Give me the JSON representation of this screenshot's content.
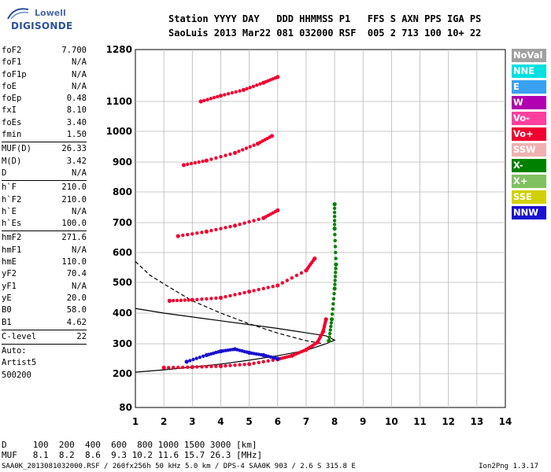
{
  "logo": {
    "line1": "Lowell",
    "line2": "DIGISONDE"
  },
  "header": {
    "line1": "Station YYYY DAY   DDD HHMMSS P1   FFS S AXN PPS IGA PS",
    "line2": "SaoLuis 2013 Mar22 081 032000 RSF  005 2 713 100 10+ 22"
  },
  "params": [
    {
      "k": "foF2",
      "v": "7.700"
    },
    {
      "k": "foF1",
      "v": "N/A"
    },
    {
      "k": "foF1p",
      "v": "N/A"
    },
    {
      "k": "foE",
      "v": "N/A"
    },
    {
      "k": "foEp",
      "v": "0.48"
    },
    {
      "k": "fxI",
      "v": "8.10"
    },
    {
      "k": "foEs",
      "v": "3.40"
    },
    {
      "k": "fmin",
      "v": "1.50"
    },
    {
      "sep": true
    },
    {
      "k": "MUF(D)",
      "v": "26.33"
    },
    {
      "k": "M(D)",
      "v": "3.42"
    },
    {
      "k": "D",
      "v": "N/A"
    },
    {
      "sep": true
    },
    {
      "k": "h`F",
      "v": "210.0"
    },
    {
      "k": "h`F2",
      "v": "210.0"
    },
    {
      "k": "h`E",
      "v": "N/A"
    },
    {
      "k": "h`Es",
      "v": "100.0"
    },
    {
      "sep": true
    },
    {
      "k": "hmF2",
      "v": "271.6"
    },
    {
      "k": "hmF1",
      "v": "N/A"
    },
    {
      "k": "hmE",
      "v": "110.0"
    },
    {
      "k": "yF2",
      "v": "70.4"
    },
    {
      "k": "yF1",
      "v": "N/A"
    },
    {
      "k": "yE",
      "v": "20.0"
    },
    {
      "k": "B0",
      "v": "58.0"
    },
    {
      "k": "B1",
      "v": "4.62"
    },
    {
      "sep": true
    },
    {
      "k": "C-level",
      "v": "22"
    },
    {
      "sep": true
    },
    {
      "plain": "Auto:"
    },
    {
      "plain": "Artist5"
    },
    {
      "plain": "500200"
    }
  ],
  "dmuf": {
    "d_line": "D     100  200  400  600  800 1000 1500 3000 [km]",
    "muf_line": "MUF   8.1  8.2  8.6  9.3 10.2 11.6 15.7 26.3 [MHz]"
  },
  "footer": "SAA0K_2013081032000.RSF / 260fx256h 50 kHz 5.0 km / DPS-4 SAA0K 903 / 2.6 S 315.8 E",
  "version": "Ion2Png 1.3.17",
  "legend": [
    {
      "label": "NoVal",
      "color": "#a0a0a0"
    },
    {
      "label": "NNE",
      "color": "#00e0e0"
    },
    {
      "label": "E",
      "color": "#3aa0f0"
    },
    {
      "label": "W",
      "color": "#b000b0"
    },
    {
      "label": "Vo-",
      "color": "#ff40a0"
    },
    {
      "label": "Vo+",
      "color": "#f00030"
    },
    {
      "label": "SSW",
      "color": "#f0b0b0"
    },
    {
      "label": "X-",
      "color": "#008000"
    },
    {
      "label": "X+",
      "color": "#80c060"
    },
    {
      "label": "SSE",
      "color": "#d0d000"
    },
    {
      "label": "NNW",
      "color": "#1a10d0"
    }
  ],
  "chart_data": {
    "type": "scatter",
    "xlim": [
      1,
      14
    ],
    "ylim": [
      80,
      1280
    ],
    "x_unit": "MHz",
    "y_unit": "km",
    "x_ticks": [
      1,
      2,
      3,
      4,
      5,
      6,
      7,
      8,
      9,
      10,
      11,
      12,
      13,
      14
    ],
    "y_ticks": [
      80,
      200,
      300,
      400,
      500,
      600,
      700,
      800,
      900,
      1000,
      1100,
      1280
    ],
    "y_scale": "virtual height (nonlinear)",
    "grid": true,
    "traces": [
      {
        "name": "Vo+",
        "color": "#f00030",
        "points": [
          [
            2,
            220
          ],
          [
            3,
            222
          ],
          [
            4,
            225
          ],
          [
            5,
            232
          ],
          [
            6,
            248
          ],
          [
            6.5,
            260
          ],
          [
            7,
            280
          ],
          [
            7.4,
            305
          ],
          [
            7.6,
            340
          ],
          [
            7.7,
            380
          ]
        ]
      },
      {
        "name": "Vo+",
        "color": "#f00030",
        "points": [
          [
            2.2,
            440
          ],
          [
            3,
            443
          ],
          [
            4,
            450
          ],
          [
            5,
            470
          ],
          [
            6,
            490
          ],
          [
            7,
            540
          ],
          [
            7.3,
            580
          ]
        ]
      },
      {
        "name": "Vo+",
        "color": "#f00030",
        "points": [
          [
            2.5,
            655
          ],
          [
            3.5,
            670
          ],
          [
            4.5,
            690
          ],
          [
            5.5,
            715
          ],
          [
            6,
            740
          ]
        ]
      },
      {
        "name": "Vo+",
        "color": "#f00030",
        "points": [
          [
            2.7,
            890
          ],
          [
            3.5,
            905
          ],
          [
            4.5,
            930
          ],
          [
            5.3,
            960
          ],
          [
            5.8,
            985
          ]
        ]
      },
      {
        "name": "Vo+",
        "color": "#f00030",
        "points": [
          [
            3.3,
            1100
          ],
          [
            4,
            1120
          ],
          [
            4.8,
            1140
          ],
          [
            5.5,
            1165
          ],
          [
            6,
            1185
          ]
        ]
      },
      {
        "name": "NNW",
        "color": "#1a10d0",
        "points": [
          [
            2.8,
            240
          ],
          [
            3.5,
            262
          ],
          [
            4,
            275
          ],
          [
            4.5,
            282
          ],
          [
            5,
            270
          ],
          [
            5.5,
            262
          ],
          [
            6,
            250
          ]
        ]
      },
      {
        "name": "X-",
        "color": "#008000",
        "points": [
          [
            7.8,
            310
          ],
          [
            7.9,
            380
          ],
          [
            8,
            480
          ],
          [
            8.05,
            560
          ],
          [
            8,
            680
          ],
          [
            8,
            760
          ]
        ]
      }
    ],
    "model_curves": [
      {
        "style": "solid",
        "points": [
          [
            1,
            205
          ],
          [
            2,
            213
          ],
          [
            3,
            222
          ],
          [
            4,
            232
          ],
          [
            5,
            245
          ],
          [
            6,
            260
          ],
          [
            7,
            278
          ],
          [
            7.7,
            300
          ],
          [
            8,
            312
          ],
          [
            7.7,
            326
          ],
          [
            6,
            350
          ],
          [
            4,
            375
          ],
          [
            2,
            400
          ],
          [
            1,
            415
          ]
        ]
      },
      {
        "style": "dashed",
        "points": [
          [
            1,
            570
          ],
          [
            1.5,
            525
          ],
          [
            2,
            495
          ],
          [
            3,
            440
          ],
          [
            4,
            400
          ],
          [
            5,
            365
          ],
          [
            6,
            335
          ],
          [
            7,
            310
          ],
          [
            7.6,
            300
          ]
        ]
      }
    ]
  }
}
